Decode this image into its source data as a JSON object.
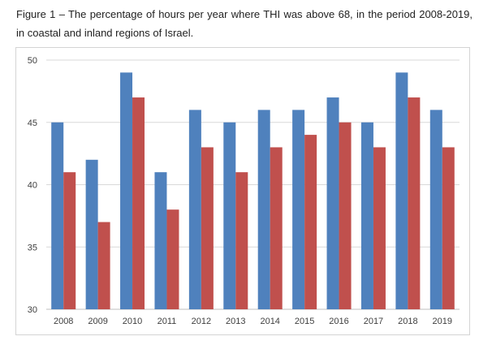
{
  "caption": "Figure 1 – The percentage of hours per year where THI was above 68, in the period 2008-2019, in coastal and inland regions of Israel.",
  "colors": {
    "series1": "#4f81bd",
    "series2": "#c0504d",
    "grid": "#d9d9d9",
    "axis": "#bfbfbf"
  },
  "chart_data": {
    "type": "bar",
    "categories": [
      "2008",
      "2009",
      "2010",
      "2011",
      "2012",
      "2013",
      "2014",
      "2015",
      "2016",
      "2017",
      "2018",
      "2019"
    ],
    "series": [
      {
        "values": [
          45,
          42,
          49,
          41,
          46,
          45,
          46,
          46,
          47,
          45,
          49,
          46
        ]
      },
      {
        "values": [
          41,
          37,
          47,
          38,
          43,
          41,
          43,
          44,
          45,
          43,
          47,
          43
        ]
      }
    ],
    "title": "",
    "xlabel": "",
    "ylabel": "",
    "ylim": [
      30,
      50
    ],
    "yticks": [
      30,
      35,
      40,
      45,
      50
    ],
    "grid": true,
    "legend": "none"
  }
}
